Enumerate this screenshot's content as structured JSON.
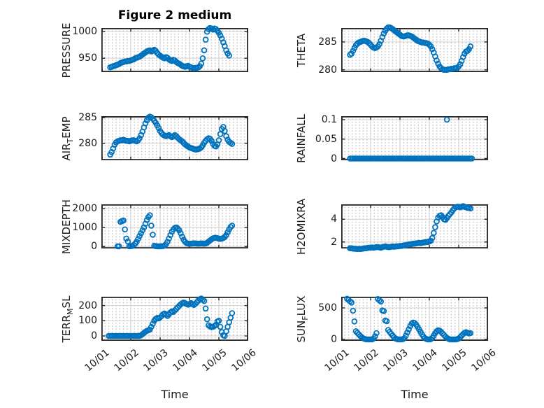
{
  "figure": {
    "title": "Figure 2 medium",
    "xlabel": "Time",
    "x_tick_labels": [
      "10/01",
      "10/02",
      "10/03",
      "10/04",
      "10/05",
      "10/06"
    ],
    "xlim": [
      0,
      5
    ],
    "marker_color": "#0072BD",
    "axis_color": "#262626",
    "grid_color": "#d2d2d2"
  },
  "chart_data": [
    {
      "type": "scatter",
      "name": "PRESSURE",
      "ylabel_segments": [
        {
          "text": "PRESSURE"
        }
      ],
      "ylim": [
        924,
        1007
      ],
      "yticks": [
        {
          "v": 950,
          "label": "950"
        },
        {
          "v": 1000,
          "label": "1000"
        }
      ],
      "x0": 0.3,
      "dx": 0.05,
      "y": [
        933,
        934,
        935,
        936,
        937,
        938,
        939,
        941,
        942,
        943,
        944,
        944,
        945,
        945,
        946,
        947,
        948,
        950,
        951,
        952,
        953,
        955,
        957,
        959,
        961,
        963,
        964,
        965,
        963,
        964,
        966,
        964,
        960,
        957,
        955,
        953,
        951,
        950,
        952,
        951,
        948,
        946,
        945,
        947,
        946,
        943,
        941,
        940,
        938,
        936,
        935,
        934,
        935,
        936,
        934,
        933,
        932,
        931,
        932,
        932,
        933,
        935,
        940,
        950,
        965,
        985,
        1000,
        1005,
        1007,
        1006,
        1004,
        1006,
        1005,
        1002,
        998,
        993,
        987,
        980,
        973,
        965,
        959,
        955
      ]
    },
    {
      "type": "scatter",
      "name": "THETA",
      "ylabel_segments": [
        {
          "text": "THETA"
        }
      ],
      "ylim": [
        279.6,
        287.5
      ],
      "yticks": [
        {
          "v": 280,
          "label": "280"
        },
        {
          "v": 285,
          "label": "285"
        }
      ],
      "x0": 0.3,
      "dx": 0.05,
      "y": [
        282.7,
        282.9,
        283.4,
        283.9,
        284.4,
        284.7,
        284.9,
        285.0,
        285.1,
        285.2,
        285.2,
        285.1,
        285.0,
        284.8,
        284.5,
        284.2,
        284.0,
        283.9,
        284.0,
        284.2,
        284.6,
        285.2,
        285.9,
        286.5,
        287.0,
        287.4,
        287.6,
        287.6,
        287.5,
        287.3,
        287.1,
        286.9,
        286.7,
        286.5,
        286.3,
        286.1,
        286.0,
        286.0,
        286.1,
        286.2,
        286.2,
        286.1,
        286.0,
        285.8,
        285.6,
        285.4,
        285.2,
        285.1,
        285.0,
        284.9,
        284.9,
        284.8,
        284.8,
        284.7,
        284.5,
        284.2,
        283.7,
        283.1,
        282.4,
        281.7,
        281.1,
        280.6,
        280.3,
        280.1,
        280.0,
        280.0,
        280.0,
        280.1,
        280.1,
        280.2,
        280.2,
        280.3,
        280.3,
        280.4,
        280.6,
        281.0,
        281.6,
        282.3,
        282.9,
        283.3,
        283.4,
        283.7,
        284.2
      ]
    },
    {
      "type": "scatter",
      "name": "AIR_TEMP",
      "ylabel_segments": [
        {
          "text": "AIR"
        },
        {
          "text": "T",
          "sub": true
        },
        {
          "text": "EMP"
        }
      ],
      "ylim": [
        276.7,
        285.3
      ],
      "yticks": [
        {
          "v": 280,
          "label": "280"
        },
        {
          "v": 285,
          "label": "285"
        }
      ],
      "x0": 0.3,
      "dx": 0.05,
      "y": [
        277.8,
        278.3,
        279.0,
        279.7,
        280.2,
        280.4,
        280.5,
        280.6,
        280.6,
        280.7,
        280.6,
        280.5,
        280.5,
        280.4,
        280.5,
        280.6,
        280.6,
        280.5,
        280.4,
        280.6,
        281.0,
        281.6,
        282.3,
        283.1,
        283.9,
        284.5,
        285.0,
        285.2,
        285.1,
        284.8,
        284.4,
        284.0,
        283.5,
        283.0,
        282.4,
        282.0,
        281.7,
        281.5,
        281.4,
        281.5,
        281.6,
        281.4,
        281.2,
        281.4,
        281.6,
        281.4,
        281.1,
        280.8,
        280.6,
        280.4,
        280.1,
        279.8,
        279.6,
        279.4,
        279.2,
        279.1,
        279.0,
        278.9,
        278.8,
        278.8,
        278.9,
        279.0,
        279.2,
        279.6,
        280.1,
        280.5,
        280.8,
        281.0,
        280.9,
        280.5,
        279.9,
        279.5,
        279.4,
        279.8,
        280.6,
        281.8,
        282.8,
        283.2,
        282.4,
        281.4,
        280.7,
        280.3,
        280.1,
        279.9
      ]
    },
    {
      "type": "scatter",
      "name": "RAINFALL",
      "ylabel_segments": [
        {
          "text": "RAINFALL"
        }
      ],
      "ylim": [
        -0.0045,
        0.109
      ],
      "yticks": [
        {
          "v": 0,
          "label": "0"
        },
        {
          "v": 0.05,
          "label": "0.05"
        },
        {
          "v": 0.1,
          "label": "0.1"
        }
      ],
      "x0": 0.3,
      "dx": 0.05,
      "y": [
        0,
        0,
        0,
        0,
        0,
        0,
        0,
        0,
        0,
        0,
        0,
        0,
        0,
        0,
        0,
        0,
        0,
        0,
        0,
        0,
        0,
        0,
        0,
        0,
        0,
        0,
        0,
        0,
        0,
        0,
        0,
        0,
        0,
        0,
        0,
        0,
        0,
        0,
        0,
        0,
        0,
        0,
        0,
        0,
        0,
        0,
        0,
        0,
        0,
        0,
        0,
        0,
        0,
        0,
        0,
        0,
        0,
        0,
        0,
        0,
        0,
        0,
        0,
        0,
        0,
        0,
        0,
        0,
        0,
        0,
        0,
        0,
        0,
        0,
        0,
        0,
        0,
        0,
        0,
        0,
        0,
        0,
        0,
        0
      ],
      "extra_points": [
        [
          3.6,
          0.1
        ]
      ]
    },
    {
      "type": "scatter",
      "name": "MIXDEPTH",
      "ylabel_segments": [
        {
          "text": "MIXDEPTH"
        }
      ],
      "ylim": [
        -100,
        2220
      ],
      "yticks": [
        {
          "v": 0,
          "label": "0"
        },
        {
          "v": 1000,
          "label": "1000"
        },
        {
          "v": 2000,
          "label": "2000"
        }
      ],
      "x0": 0.55,
      "dx": 0.05,
      "y": [
        10,
        15,
        1300,
        1340,
        1370,
        900,
        420,
        270,
        15,
        20,
        30,
        80,
        150,
        250,
        400,
        550,
        700,
        850,
        1000,
        1200,
        1400,
        1550,
        1650,
        1100,
        620,
        40,
        20,
        15,
        12,
        15,
        18,
        25,
        50,
        120,
        250,
        420,
        600,
        780,
        900,
        980,
        1000,
        950,
        850,
        700,
        520,
        360,
        250,
        180,
        155,
        145,
        150,
        160,
        170,
        165,
        155,
        150,
        155,
        165,
        160,
        150,
        165,
        200,
        260,
        320,
        380,
        430,
        455,
        460,
        440,
        420,
        405,
        420,
        450,
        500,
        600,
        750,
        900,
        1030,
        1100
      ]
    },
    {
      "type": "scatter",
      "name": "H2OMIXRA",
      "ylabel_segments": [
        {
          "text": "H2OMIXRA"
        }
      ],
      "ylim": [
        1.43,
        5.31
      ],
      "yticks": [
        {
          "v": 2,
          "label": "2"
        },
        {
          "v": 4,
          "label": "4"
        }
      ],
      "x0": 0.3,
      "dx": 0.05,
      "y": [
        1.45,
        1.45,
        1.42,
        1.4,
        1.4,
        1.38,
        1.4,
        1.38,
        1.4,
        1.42,
        1.45,
        1.45,
        1.48,
        1.5,
        1.5,
        1.52,
        1.5,
        1.52,
        1.55,
        1.55,
        1.52,
        1.5,
        1.55,
        1.58,
        1.6,
        1.58,
        1.55,
        1.55,
        1.58,
        1.6,
        1.58,
        1.6,
        1.62,
        1.62,
        1.65,
        1.65,
        1.68,
        1.7,
        1.72,
        1.75,
        1.78,
        1.8,
        1.82,
        1.85,
        1.85,
        1.88,
        1.9,
        1.92,
        1.9,
        1.92,
        1.95,
        1.98,
        2.0,
        2.0,
        2.05,
        2.1,
        2.35,
        2.8,
        3.3,
        3.8,
        4.15,
        4.3,
        4.35,
        4.2,
        4.0,
        3.95,
        4.1,
        4.3,
        4.45,
        4.6,
        4.8,
        4.95,
        5.05,
        5.1,
        5.1,
        5.05,
        5.1,
        5.15,
        5.1,
        5.05,
        5.0,
        5.0,
        4.95
      ]
    },
    {
      "type": "scatter",
      "name": "TERR_MSL",
      "ylabel_segments": [
        {
          "text": "TERR"
        },
        {
          "text": "M",
          "sub": true
        },
        {
          "text": "SL"
        }
      ],
      "ylim": [
        -32,
        258
      ],
      "yticks": [
        {
          "v": 0,
          "label": "0"
        },
        {
          "v": 100,
          "label": "100"
        },
        {
          "v": 200,
          "label": "200"
        }
      ],
      "x0": 0.25,
      "dx": 0.05,
      "y": [
        0,
        0,
        0,
        0,
        0,
        0,
        0,
        0,
        0,
        0,
        0,
        0,
        0,
        0,
        0,
        0,
        0,
        0,
        0,
        0,
        0,
        0,
        5,
        12,
        20,
        28,
        34,
        38,
        42,
        60,
        80,
        100,
        112,
        118,
        115,
        122,
        132,
        142,
        148,
        140,
        132,
        142,
        155,
        162,
        158,
        168,
        178,
        188,
        198,
        208,
        215,
        220,
        215,
        210,
        206,
        210,
        216,
        210,
        204,
        212,
        222,
        232,
        242,
        246,
        238,
        230,
        180,
        110,
        70,
        63,
        58,
        60,
        66,
        72,
        95,
        100,
        60,
        25,
        5,
        0,
        30,
        60,
        90,
        120,
        150
      ]
    },
    {
      "type": "scatter",
      "name": "SUN_FLUX",
      "ylabel_segments": [
        {
          "text": "SUN"
        },
        {
          "text": "F",
          "sub": true
        },
        {
          "text": "LUX"
        }
      ],
      "ylim": [
        -22,
        677
      ],
      "yticks": [
        {
          "v": 0,
          "label": "0"
        },
        {
          "v": 500,
          "label": "500"
        }
      ],
      "x0": 0.2,
      "dx": 0.05,
      "y": [
        645,
        625,
        605,
        585,
        455,
        285,
        130,
        105,
        80,
        55,
        35,
        18,
        8,
        2,
        0,
        0,
        0,
        0,
        15,
        50,
        100,
        640,
        620,
        600,
        460,
        450,
        300,
        290,
        150,
        120,
        90,
        60,
        35,
        15,
        5,
        0,
        0,
        0,
        5,
        20,
        60,
        110,
        160,
        210,
        250,
        268,
        260,
        235,
        200,
        160,
        120,
        80,
        45,
        20,
        8,
        0,
        0,
        5,
        25,
        60,
        100,
        130,
        145,
        140,
        120,
        95,
        70,
        45,
        25,
        10,
        0,
        0,
        0,
        0,
        0,
        5,
        15,
        35,
        60,
        85,
        105,
        115,
        105,
        95,
        100
      ]
    }
  ]
}
